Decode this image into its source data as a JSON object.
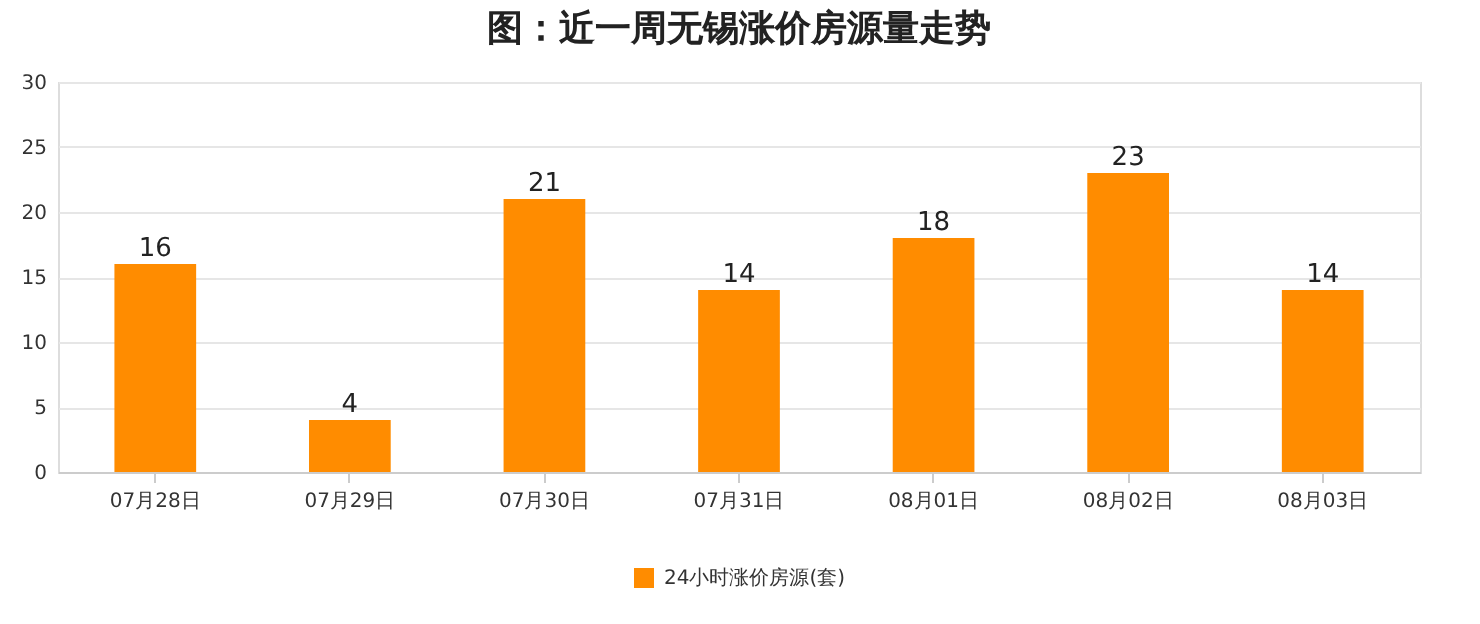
{
  "chart_data": {
    "type": "bar",
    "title": "图：近一周无锡涨价房源量走势",
    "categories": [
      "07月28日",
      "07月29日",
      "07月30日",
      "07月31日",
      "08月01日",
      "08月02日",
      "08月03日"
    ],
    "series": [
      {
        "name": "24小时涨价房源(套)",
        "color": "#ff8c00",
        "values": [
          16,
          4,
          21,
          14,
          18,
          23,
          14
        ]
      }
    ],
    "ylim": [
      0,
      30
    ],
    "yticks": [
      0,
      5,
      10,
      15,
      20,
      25,
      30
    ],
    "grid": "y",
    "legend": "bottom",
    "data_labels": true
  }
}
